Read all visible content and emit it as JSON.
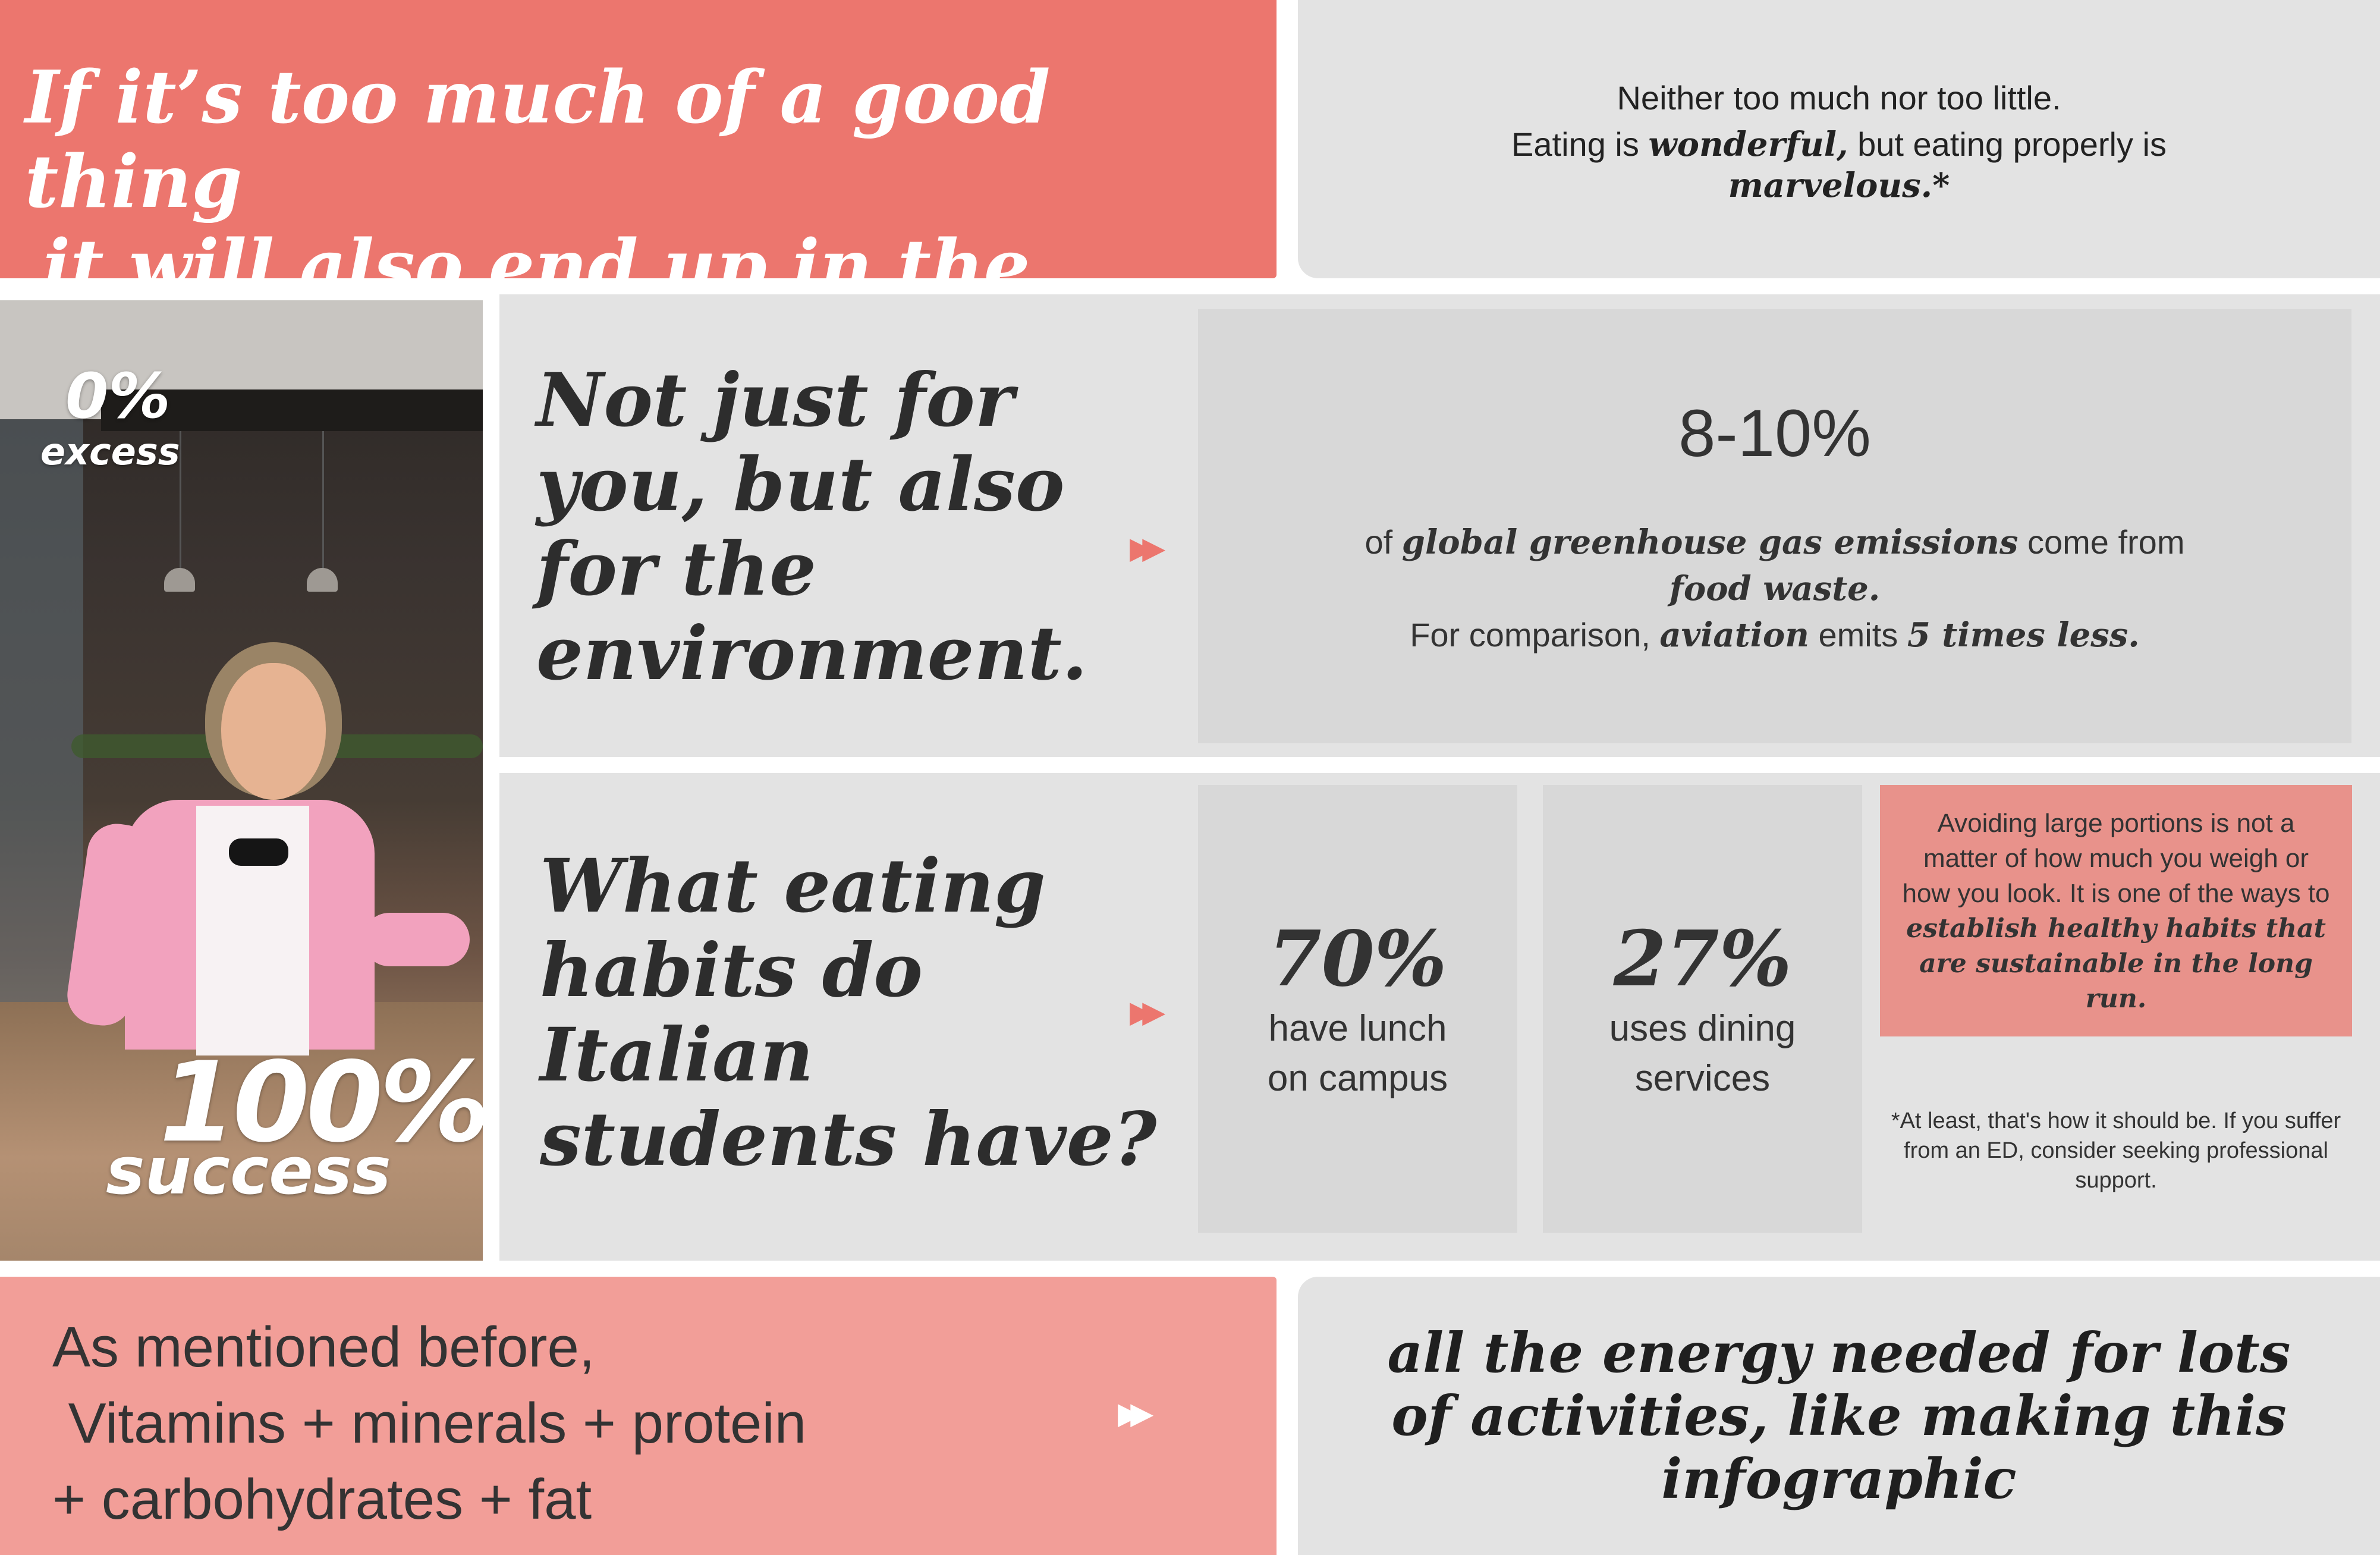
{
  "header": {
    "headline_line1": "If it’s too much of a good thing",
    "headline_line2": "it will also end up in the trash.",
    "tagline_line1": "Neither too much nor too little.",
    "tagline_pre": "Eating is ",
    "tagline_em1": "wonderful,",
    "tagline_mid": " but eating properly is",
    "tagline_em2": "marvelous.*"
  },
  "photo": {
    "zero_value": "0%",
    "zero_label": "excess",
    "hundred_value": "100%",
    "hundred_label": "success"
  },
  "environment": {
    "question_lines": [
      "Not just for",
      "you, but also",
      "for the",
      "environment."
    ],
    "stat_value": "8-10%",
    "line1_pre": "of ",
    "line1_em": "global greenhouse gas emissions",
    "line1_post": " come from",
    "line2_em": "food waste.",
    "line3_pre": "For comparison, ",
    "line3_em1": "aviation",
    "line3_mid": " emits ",
    "line3_em2": "5 times less."
  },
  "habits": {
    "question_lines": [
      "What eating",
      "habits do",
      "Italian",
      "students have?"
    ],
    "lunch_value": "70%",
    "lunch_label_1": "have lunch",
    "lunch_label_2": "on campus",
    "dining_value": "27%",
    "dining_label_1": "uses dining",
    "dining_label_2": "services",
    "note_plain": "Avoiding large portions is not a matter of how much you weigh or how you look. It is one of the ways to ",
    "note_em": "establish healthy habits that are sustainable in the long run.",
    "footnote": "*At least, that's how it should be. If you suffer from an ED, consider seeking professional support."
  },
  "footer": {
    "left_lines": [
      "As mentioned before,",
      " Vitamins + minerals + protein",
      "+ carbohydrates + fat"
    ],
    "right_lines": [
      "all the energy needed for lots",
      "of activities, like making this",
      "infographic"
    ]
  },
  "icons": {
    "arrow_glyph": "▸▸"
  },
  "colors": {
    "coral": "#ec766e",
    "light_coral": "#f29e98",
    "note_coral": "#e8928b",
    "panel_gray": "#e3e3e3",
    "box_gray": "#d8d8d8"
  }
}
